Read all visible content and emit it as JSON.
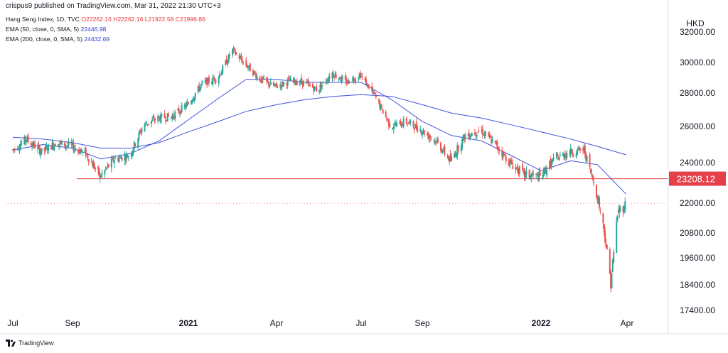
{
  "header": {
    "text": "crispus9 published on TradingView.com, Mar 31, 2022 21:30 UTC+3"
  },
  "legend": {
    "symbol": "Hang Seng Index, 1D, TVC",
    "ohlc": {
      "o": "O22262.16",
      "h": "H22262.16",
      "l": "L21922.58",
      "c": "C21996.86"
    },
    "ema50": {
      "label": "EMA (50, close, 0, SMA, 5)",
      "value": "22446.98"
    },
    "ema200": {
      "label": "EMA (200, close, 0, SMA, 5)",
      "value": "24432.69"
    }
  },
  "currency": "HKD",
  "price_label": {
    "value": "23208.12"
  },
  "footer": {
    "brand": "TradingView"
  },
  "colors": {
    "up": "#26a69a",
    "down": "#ef5350",
    "ema": "#3f51e0",
    "price_line": "#e5404a",
    "last_price": "#f28b90"
  },
  "chart_data": {
    "type": "line",
    "title": "",
    "y_ticks": [
      "32000.00",
      "30000.00",
      "28000.00",
      "26000.00",
      "24000.00",
      "22000.00",
      "20800.00",
      "19600.00",
      "18400.00",
      "17400.00"
    ],
    "y_tick_values": [
      32000,
      30000,
      28000,
      26000,
      24000,
      22000,
      20800,
      19600,
      18400,
      17400
    ],
    "x_ticks": [
      "Jul",
      "Sep",
      "2021",
      "Apr",
      "Jul",
      "Sep",
      "2022",
      "Apr"
    ],
    "x_tick_bold": [
      false,
      false,
      true,
      false,
      false,
      false,
      true,
      false
    ],
    "x_tick_dates": [
      "2020-07-01",
      "2020-09-01",
      "2021-01-01",
      "2021-04-01",
      "2021-07-01",
      "2021-09-01",
      "2022-01-01",
      "2022-04-01"
    ],
    "horizontal_line": 23208.12,
    "last_price": 21996.86,
    "series": [
      {
        "name": "Hang Seng Index",
        "style": "candles",
        "points": [
          [
            "2020-07-01",
            24700
          ],
          [
            "2020-07-15",
            25300
          ],
          [
            "2020-07-31",
            24600
          ],
          [
            "2020-08-15",
            25100
          ],
          [
            "2020-08-31",
            24900
          ],
          [
            "2020-09-15",
            24500
          ],
          [
            "2020-09-30",
            23300
          ],
          [
            "2020-10-15",
            24200
          ],
          [
            "2020-10-31",
            24400
          ],
          [
            "2020-11-15",
            26100
          ],
          [
            "2020-11-30",
            26500
          ],
          [
            "2020-12-15",
            26600
          ],
          [
            "2020-12-31",
            27300
          ],
          [
            "2021-01-15",
            28600
          ],
          [
            "2021-01-31",
            29000
          ],
          [
            "2021-02-15",
            30800
          ],
          [
            "2021-02-28",
            29900
          ],
          [
            "2021-03-15",
            28900
          ],
          [
            "2021-03-31",
            28400
          ],
          [
            "2021-04-15",
            28800
          ],
          [
            "2021-04-30",
            28700
          ],
          [
            "2021-05-15",
            28200
          ],
          [
            "2021-05-31",
            29300
          ],
          [
            "2021-06-15",
            28700
          ],
          [
            "2021-06-30",
            29200
          ],
          [
            "2021-07-15",
            27800
          ],
          [
            "2021-07-31",
            26000
          ],
          [
            "2021-08-15",
            26300
          ],
          [
            "2021-08-31",
            25800
          ],
          [
            "2021-09-15",
            25200
          ],
          [
            "2021-09-30",
            24100
          ],
          [
            "2021-10-15",
            25500
          ],
          [
            "2021-10-31",
            25800
          ],
          [
            "2021-11-15",
            25000
          ],
          [
            "2021-11-30",
            24000
          ],
          [
            "2021-12-15",
            23400
          ],
          [
            "2021-12-31",
            23300
          ],
          [
            "2022-01-15",
            24200
          ],
          [
            "2022-01-31",
            24600
          ],
          [
            "2022-02-15",
            24700
          ],
          [
            "2022-02-28",
            22500
          ],
          [
            "2022-03-08",
            20900
          ],
          [
            "2022-03-15",
            18500
          ],
          [
            "2022-03-22",
            21600
          ],
          [
            "2022-03-31",
            21997
          ]
        ]
      },
      {
        "name": "EMA 50",
        "points": [
          [
            "2020-07-01",
            24700
          ],
          [
            "2020-08-01",
            25000
          ],
          [
            "2020-09-01",
            24800
          ],
          [
            "2020-10-01",
            24200
          ],
          [
            "2020-11-01",
            24500
          ],
          [
            "2020-12-01",
            25200
          ],
          [
            "2021-01-01",
            26400
          ],
          [
            "2021-02-01",
            27700
          ],
          [
            "2021-03-01",
            28900
          ],
          [
            "2021-04-01",
            28900
          ],
          [
            "2021-05-01",
            28700
          ],
          [
            "2021-06-01",
            28700
          ],
          [
            "2021-07-01",
            28700
          ],
          [
            "2021-08-01",
            27600
          ],
          [
            "2021-09-01",
            26300
          ],
          [
            "2021-10-01",
            25500
          ],
          [
            "2021-11-01",
            25200
          ],
          [
            "2021-12-01",
            24400
          ],
          [
            "2022-01-01",
            23600
          ],
          [
            "2022-02-01",
            24100
          ],
          [
            "2022-03-01",
            23900
          ],
          [
            "2022-03-31",
            22447
          ]
        ]
      },
      {
        "name": "EMA 200",
        "points": [
          [
            "2020-07-01",
            25400
          ],
          [
            "2020-08-01",
            25300
          ],
          [
            "2020-09-01",
            25100
          ],
          [
            "2020-10-01",
            24800
          ],
          [
            "2020-11-01",
            24800
          ],
          [
            "2020-12-01",
            25100
          ],
          [
            "2021-01-01",
            25700
          ],
          [
            "2021-02-01",
            26300
          ],
          [
            "2021-03-01",
            26900
          ],
          [
            "2021-04-01",
            27300
          ],
          [
            "2021-05-01",
            27600
          ],
          [
            "2021-06-01",
            27800
          ],
          [
            "2021-07-01",
            27900
          ],
          [
            "2021-08-01",
            27800
          ],
          [
            "2021-09-01",
            27300
          ],
          [
            "2021-10-01",
            26800
          ],
          [
            "2021-11-01",
            26500
          ],
          [
            "2021-12-01",
            26100
          ],
          [
            "2022-01-01",
            25700
          ],
          [
            "2022-02-01",
            25300
          ],
          [
            "2022-03-01",
            24900
          ],
          [
            "2022-03-31",
            24433
          ]
        ]
      }
    ]
  }
}
